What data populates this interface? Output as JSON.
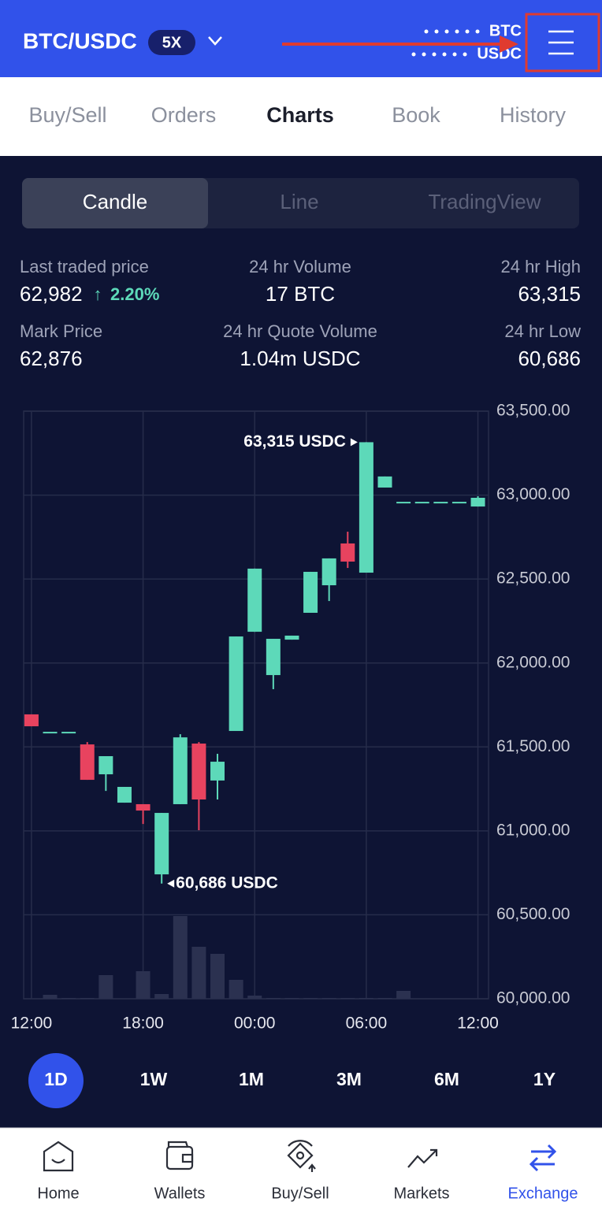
{
  "header": {
    "pair": "BTC/USDC",
    "leverage": "5X",
    "base": "BTC",
    "quote": "USDC"
  },
  "tabs": [
    "Buy/Sell",
    "Orders",
    "Charts",
    "Book",
    "History"
  ],
  "chart_modes": [
    "Candle",
    "Line",
    "TradingView"
  ],
  "stats": {
    "last_price": {
      "label": "Last traded price",
      "value": "62,982",
      "change": "2.20%"
    },
    "volume": {
      "label": "24 hr Volume",
      "value": "17 BTC"
    },
    "high": {
      "label": "24 hr High",
      "value": "63,315"
    },
    "mark_price": {
      "label": "Mark Price",
      "value": "62,876"
    },
    "quote_volume": {
      "label": "24 hr Quote Volume",
      "value": "1.04m USDC"
    },
    "low": {
      "label": "24 hr Low",
      "value": "60,686"
    }
  },
  "chart_data": {
    "type": "candlestick",
    "up_color": "#5dd9b9",
    "down_color": "#e8435f",
    "volume_color": "#2b3150",
    "x": [
      0,
      1,
      2,
      3,
      4,
      5,
      6,
      7,
      8,
      9,
      10,
      11,
      12,
      13,
      14,
      15,
      16,
      17,
      18,
      19,
      20,
      21,
      22,
      23,
      24
    ],
    "open": [
      61694,
      61590,
      61590,
      61515,
      61337,
      61168,
      61159,
      60741,
      61159,
      61520,
      61300,
      61595,
      62186,
      61928,
      62139,
      62299,
      62463,
      62712,
      62538,
      63045,
      62960,
      62960,
      62960,
      62960,
      62932
    ],
    "high": [
      61694,
      61590,
      61590,
      61529,
      61445,
      61262,
      61159,
      61107,
      61576,
      61529,
      61459,
      62158,
      62562,
      62144,
      62163,
      62543,
      62623,
      62782,
      63315,
      63111,
      62960,
      62960,
      62960,
      62960,
      62993
    ],
    "low": [
      61623,
      61590,
      61590,
      61304,
      61238,
      61168,
      61041,
      60686,
      61159,
      61004,
      61187,
      61595,
      62186,
      61844,
      62139,
      62299,
      62369,
      62566,
      62538,
      63045,
      62960,
      62960,
      62960,
      62960,
      62932
    ],
    "close": [
      61623,
      61590,
      61590,
      61304,
      61445,
      61262,
      61121,
      61107,
      61557,
      61187,
      61412,
      62158,
      62562,
      62144,
      62163,
      62543,
      62623,
      62604,
      63315,
      63111,
      62960,
      62960,
      62960,
      62960,
      62984
    ],
    "volume": [
      0,
      5,
      1,
      1,
      30,
      0,
      35,
      6,
      105,
      66,
      57,
      24,
      4,
      1,
      1,
      1,
      1,
      1,
      1,
      1,
      10,
      0,
      0,
      0,
      0
    ],
    "xlim": [
      -0.42,
      24.57
    ],
    "xticks": [
      {
        "value": 0,
        "label": "12:00"
      },
      {
        "value": 6,
        "label": "18:00"
      },
      {
        "value": 12,
        "label": "00:00"
      },
      {
        "value": 18,
        "label": "06:00"
      },
      {
        "value": 24,
        "label": "12:00"
      }
    ],
    "ylim": [
      60000,
      63500
    ],
    "yticks": [
      {
        "value": 60000,
        "label": "60,000.00"
      },
      {
        "value": 60500,
        "label": "60,500.00"
      },
      {
        "value": 61000,
        "label": "61,000.00"
      },
      {
        "value": 61500,
        "label": "61,500.00"
      },
      {
        "value": 62000,
        "label": "62,000.00"
      },
      {
        "value": 62500,
        "label": "62,500.00"
      },
      {
        "value": 63000,
        "label": "63,000.00"
      },
      {
        "value": 63500,
        "label": "63,500.00"
      }
    ],
    "grid": true,
    "annotations": [
      {
        "x": 18,
        "y": 63315,
        "label": "63,315 USDC",
        "side": "left"
      },
      {
        "x": 7,
        "y": 60686,
        "label": "60,686 USDC",
        "side": "right"
      }
    ]
  },
  "timeframes": [
    "1D",
    "1W",
    "1M",
    "3M",
    "6M",
    "1Y"
  ],
  "nav": [
    "Home",
    "Wallets",
    "Buy/Sell",
    "Markets",
    "Exchange"
  ]
}
